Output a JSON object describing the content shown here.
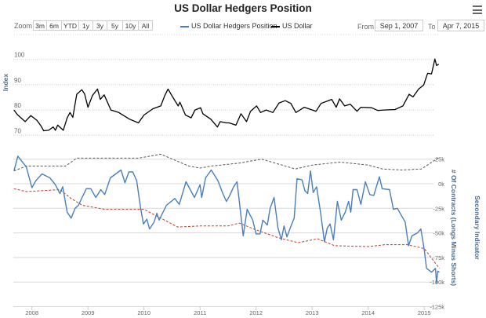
{
  "title": "US Dollar Hedgers Position",
  "menu_icon": "hamburger-icon",
  "range_selector": {
    "zoom_label": "Zoom",
    "buttons": [
      "3m",
      "6m",
      "YTD",
      "1y",
      "3y",
      "5y",
      "10y",
      "All"
    ],
    "from_label": "From",
    "from_value": "Sep 1, 2007",
    "to_label": "To",
    "to_value": "Apr 7, 2015"
  },
  "legend": [
    {
      "name": "US Dollar Hedgers Position",
      "color": "#4a7ebb"
    },
    {
      "name": "US Dollar",
      "color": "#000000"
    }
  ],
  "chart_data": [
    {
      "type": "line",
      "title": "US Dollar Hedgers Position",
      "ylabel": "Index",
      "ylim": [
        70,
        100
      ],
      "yticks": [
        "70",
        "80",
        "90",
        "100"
      ],
      "grid": true,
      "series": [
        {
          "name": "US Dollar",
          "color": "#000000",
          "x": [
            2007.68,
            2007.74,
            2007.88,
            2007.98,
            2008.09,
            2008.16,
            2008.21,
            2008.3,
            2008.38,
            2008.42,
            2008.46,
            2008.56,
            2008.63,
            2008.68,
            2008.73,
            2008.8,
            2008.89,
            2008.94,
            2009.0,
            2009.08,
            2009.17,
            2009.22,
            2009.29,
            2009.41,
            2009.55,
            2009.74,
            2009.9,
            2010.0,
            2010.16,
            2010.3,
            2010.37,
            2010.43,
            2010.51,
            2010.61,
            2010.64,
            2010.74,
            2010.84,
            2010.91,
            2011.01,
            2011.05,
            2011.19,
            2011.31,
            2011.36,
            2011.47,
            2011.52,
            2011.64,
            2011.73,
            2011.83,
            2011.9,
            2012.01,
            2012.08,
            2012.18,
            2012.3,
            2012.41,
            2012.52,
            2012.62,
            2012.71,
            2012.86,
            2013.07,
            2013.16,
            2013.35,
            2013.43,
            2013.49,
            2013.58,
            2013.68,
            2013.8,
            2013.87,
            2014.06,
            2014.17,
            2014.29,
            2014.48,
            2014.62,
            2014.73,
            2014.8,
            2014.9,
            2014.99,
            2015.06,
            2015.13,
            2015.19,
            2015.22,
            2015.26
          ],
          "y": [
            80,
            78.2,
            75.4,
            77.8,
            75.9,
            73.8,
            71.8,
            72,
            73.3,
            72,
            74,
            72,
            76.9,
            79,
            77.1,
            86.2,
            88,
            86.4,
            81.1,
            85.7,
            88.3,
            84.2,
            86,
            80,
            79,
            76.4,
            74.9,
            78,
            80.5,
            81.6,
            85.7,
            88.3,
            85.2,
            81.6,
            83.1,
            78,
            76.9,
            80,
            80.9,
            78.5,
            76.4,
            73.3,
            75.4,
            74.9,
            74.9,
            74,
            78.5,
            75.4,
            79.5,
            81.6,
            79,
            80,
            79,
            82.8,
            83.7,
            82.6,
            79,
            81.1,
            79.5,
            82.6,
            84.2,
            81.1,
            84.4,
            81.6,
            82.3,
            79.5,
            81.1,
            80.9,
            79.8,
            80,
            80.2,
            81.6,
            86.2,
            85.2,
            88.3,
            89.9,
            94.5,
            94.3,
            100.2,
            97.6,
            98.1
          ]
        }
      ]
    },
    {
      "type": "line",
      "ylabel": "# Of Contracts (Longs Minus Shorts)",
      "secondary_ylabel": "Secondary Indicator",
      "ylim": [
        -125,
        25
      ],
      "yunit": "k",
      "yticks": [
        "25k",
        "0k",
        "-25k",
        "-50k",
        "-75k",
        "-100k",
        "-125k"
      ],
      "xticks": [
        "2008",
        "2009",
        "2010",
        "2011",
        "2012",
        "2013",
        "2014",
        "2015"
      ],
      "grid": true,
      "series": [
        {
          "name": "US Dollar Hedgers Position",
          "color": "#4a7ebb",
          "x": [
            2007.68,
            2007.75,
            2007.9,
            2008.0,
            2008.07,
            2008.18,
            2008.32,
            2008.42,
            2008.5,
            2008.55,
            2008.63,
            2008.7,
            2008.77,
            2008.83,
            2008.97,
            2009.05,
            2009.14,
            2009.23,
            2009.3,
            2009.4,
            2009.59,
            2009.66,
            2009.73,
            2009.8,
            2009.87,
            2009.94,
            2009.99,
            2010.05,
            2010.1,
            2010.18,
            2010.23,
            2010.27,
            2010.4,
            2010.55,
            2010.63,
            2010.75,
            2010.9,
            2011.0,
            2011.03,
            2011.1,
            2011.2,
            2011.32,
            2011.4,
            2011.47,
            2011.52,
            2011.6,
            2011.66,
            2011.7,
            2011.77,
            2011.84,
            2011.94,
            2012.0,
            2012.07,
            2012.12,
            2012.2,
            2012.25,
            2012.32,
            2012.39,
            2012.45,
            2012.5,
            2012.55,
            2012.63,
            2012.68,
            2012.73,
            2012.82,
            2012.87,
            2012.92,
            2012.97,
            2013.02,
            2013.08,
            2013.15,
            2013.22,
            2013.27,
            2013.32,
            2013.38,
            2013.45,
            2013.52,
            2013.59,
            2013.65,
            2013.69,
            2013.73,
            2013.8,
            2013.87,
            2013.95,
            2014.03,
            2014.1,
            2014.2,
            2014.25,
            2014.38,
            2014.45,
            2014.52,
            2014.66,
            2014.72,
            2014.78,
            2014.88,
            2014.94,
            2015.0,
            2015.04,
            2015.13,
            2015.2,
            2015.22,
            2015.24,
            2015.27
          ],
          "y": [
            13,
            28,
            17,
            -4,
            3,
            10,
            6,
            -1,
            -10,
            -3,
            -29,
            -35,
            -25,
            -22,
            -5,
            -5,
            -14,
            -6,
            -11,
            6,
            14,
            1,
            12,
            12,
            3,
            -25,
            -41,
            -36,
            -46,
            -39,
            -30,
            -37,
            -22,
            -15,
            -21,
            2,
            -14,
            -1,
            -14,
            6,
            14,
            3,
            -9,
            -18,
            -13,
            -3,
            2,
            -18,
            -53,
            -26,
            -37,
            -51,
            -51,
            -37,
            -42,
            -25,
            -14,
            -45,
            -57,
            -43,
            -54,
            -42,
            -35,
            5,
            4,
            -7,
            -10,
            13,
            -9,
            -3,
            -29,
            -59,
            -45,
            -41,
            -57,
            -18,
            -37,
            -29,
            -18,
            -29,
            -6,
            -6,
            -21,
            2,
            -11,
            -12,
            7,
            -5,
            -6,
            -26,
            -25,
            -39,
            -63,
            -53,
            -50,
            -46,
            -67,
            -86,
            -90,
            -86,
            -101,
            -89,
            -90
          ]
        },
        {
          "name": "",
          "color": "#555555",
          "style": "dashed",
          "x": [
            2007.68,
            2007.9,
            2008.6,
            2008.8,
            2009.9,
            2010.3,
            2010.8,
            2011.0,
            2011.2,
            2011.7,
            2012.1,
            2012.7,
            2013.0,
            2013.5,
            2014.0,
            2014.25,
            2014.6,
            2014.95,
            2015.27
          ],
          "y": [
            13,
            18,
            18,
            26,
            26,
            30,
            18,
            16,
            18,
            21,
            25,
            15,
            19,
            22,
            19,
            15,
            14,
            15,
            27
          ]
        },
        {
          "name": "",
          "color": "#c0392b",
          "style": "dashed",
          "x": [
            2007.68,
            2007.9,
            2008.5,
            2008.7,
            2008.9,
            2009.3,
            2010.0,
            2010.3,
            2010.6,
            2011.0,
            2011.5,
            2011.7,
            2012.0,
            2012.4,
            2012.75,
            2013.1,
            2013.4,
            2014.0,
            2014.3,
            2014.7,
            2015.0,
            2015.27
          ],
          "y": [
            -5,
            -8,
            -6,
            -15,
            -22,
            -26,
            -26,
            -35,
            -44,
            -43,
            -43,
            -40,
            -47,
            -55,
            -60,
            -56,
            -63,
            -64,
            -62,
            -62,
            -66,
            -86
          ]
        }
      ]
    }
  ]
}
